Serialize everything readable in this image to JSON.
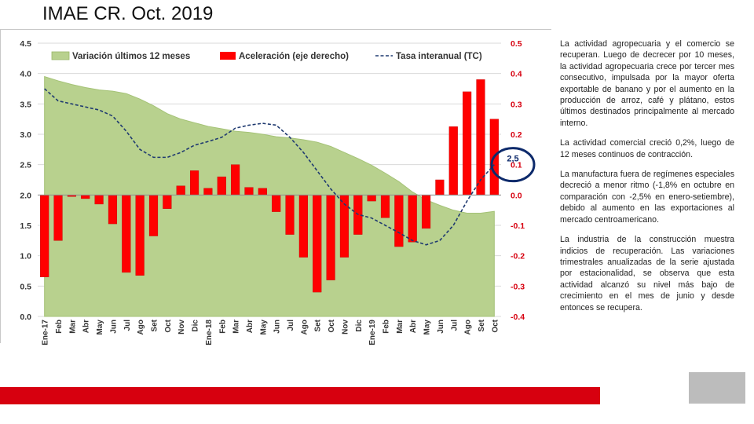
{
  "page": {
    "title": "IMAE CR. Oct. 2019",
    "paragraphs": [
      "La actividad agropecuaria y el comercio se recuperan. Luego de decrecer por 10 meses, la actividad agropecuaria crece por tercer mes consecutivo, impulsada por la mayor oferta exportable de banano y por el aumento en la producción de arroz, café y plátano, estos últimos destinados principalmente al mercado interno.",
      "La actividad comercial creció 0,2%, luego de 12 meses continuos de contracción.",
      "La manufactura fuera de regímenes especiales decreció a menor ritmo (-1,8% en octubre en comparación con -2,5% en enero-setiembre), debido al aumento en las exportaciones al mercado centroamericano.",
      "La industria de la construcción muestra indicios de recuperación. Las variaciones trimestrales anualizadas de la serie ajustada por estacionalidad, se observa que esta actividad alcanzó su nivel más bajo de crecimiento en el mes de junio y desde entonces se recupera."
    ],
    "colors": {
      "footer": "#d7000f",
      "logo": "#bcbcbc"
    }
  },
  "chart_data": {
    "type": "bar",
    "title": "",
    "categories": [
      "Ene-17",
      "Feb",
      "Mar",
      "Abr",
      "May",
      "Jun",
      "Jul",
      "Ago",
      "Set",
      "Oct",
      "Nov",
      "Dic",
      "Ene-18",
      "Feb",
      "Mar",
      "Abr",
      "May",
      "Jun",
      "Jul",
      "Ago",
      "Set",
      "Oct",
      "Nov",
      "Dic",
      "Ene-19",
      "Feb",
      "Mar",
      "Abr",
      "May",
      "Jun",
      "Jul",
      "Ago",
      "Set",
      "Oct"
    ],
    "left_axis": {
      "ticks": [
        "0.0",
        "0.5",
        "1.0",
        "1.5",
        "2.0",
        "2.5",
        "3.0",
        "3.5",
        "4.0",
        "4.5"
      ],
      "ylim": [
        0,
        4.5
      ]
    },
    "right_axis": {
      "ticks": [
        "-0.4",
        "-0.3",
        "-0.2",
        "-0.1",
        "0.0",
        "0.1",
        "0.2",
        "0.3",
        "0.4",
        "0.5"
      ],
      "ylim": [
        -0.4,
        0.5
      ]
    },
    "series": [
      {
        "name": "Variación últimos 12 meses",
        "type": "area",
        "axis": "left",
        "color": "#b8d18e",
        "values": [
          3.95,
          3.88,
          3.82,
          3.77,
          3.73,
          3.71,
          3.67,
          3.58,
          3.47,
          3.34,
          3.25,
          3.19,
          3.13,
          3.09,
          3.05,
          3.03,
          3.0,
          2.96,
          2.94,
          2.91,
          2.87,
          2.8,
          2.7,
          2.6,
          2.49,
          2.36,
          2.22,
          2.05,
          1.92,
          1.83,
          1.75,
          1.7,
          1.7,
          1.73
        ]
      },
      {
        "name": "Aceleración (eje derecho)",
        "type": "bar",
        "axis": "right",
        "color": "#ff0000",
        "values": [
          -0.27,
          -0.15,
          -0.005,
          -0.012,
          -0.03,
          -0.095,
          -0.255,
          -0.265,
          -0.135,
          -0.045,
          0.03,
          0.08,
          0.022,
          0.06,
          0.1,
          0.025,
          0.022,
          -0.055,
          -0.13,
          -0.205,
          -0.32,
          -0.28,
          -0.205,
          -0.13,
          -0.02,
          -0.075,
          -0.17,
          -0.155,
          -0.11,
          0.05,
          0.225,
          0.34,
          0.38,
          0.25
        ]
      },
      {
        "name": "Tasa interanual (TC)",
        "type": "line",
        "axis": "left",
        "color": "#1f3a70",
        "dashed": true,
        "values": [
          3.75,
          3.55,
          3.5,
          3.45,
          3.4,
          3.3,
          3.05,
          2.75,
          2.62,
          2.62,
          2.7,
          2.82,
          2.88,
          2.95,
          3.1,
          3.15,
          3.18,
          3.15,
          2.95,
          2.7,
          2.4,
          2.1,
          1.85,
          1.68,
          1.62,
          1.5,
          1.38,
          1.25,
          1.18,
          1.25,
          1.5,
          1.9,
          2.25,
          2.5
        ]
      }
    ],
    "annotation": {
      "label": "2,5",
      "category_index": 33,
      "style": "circle",
      "color": "#0d2a6b"
    }
  }
}
